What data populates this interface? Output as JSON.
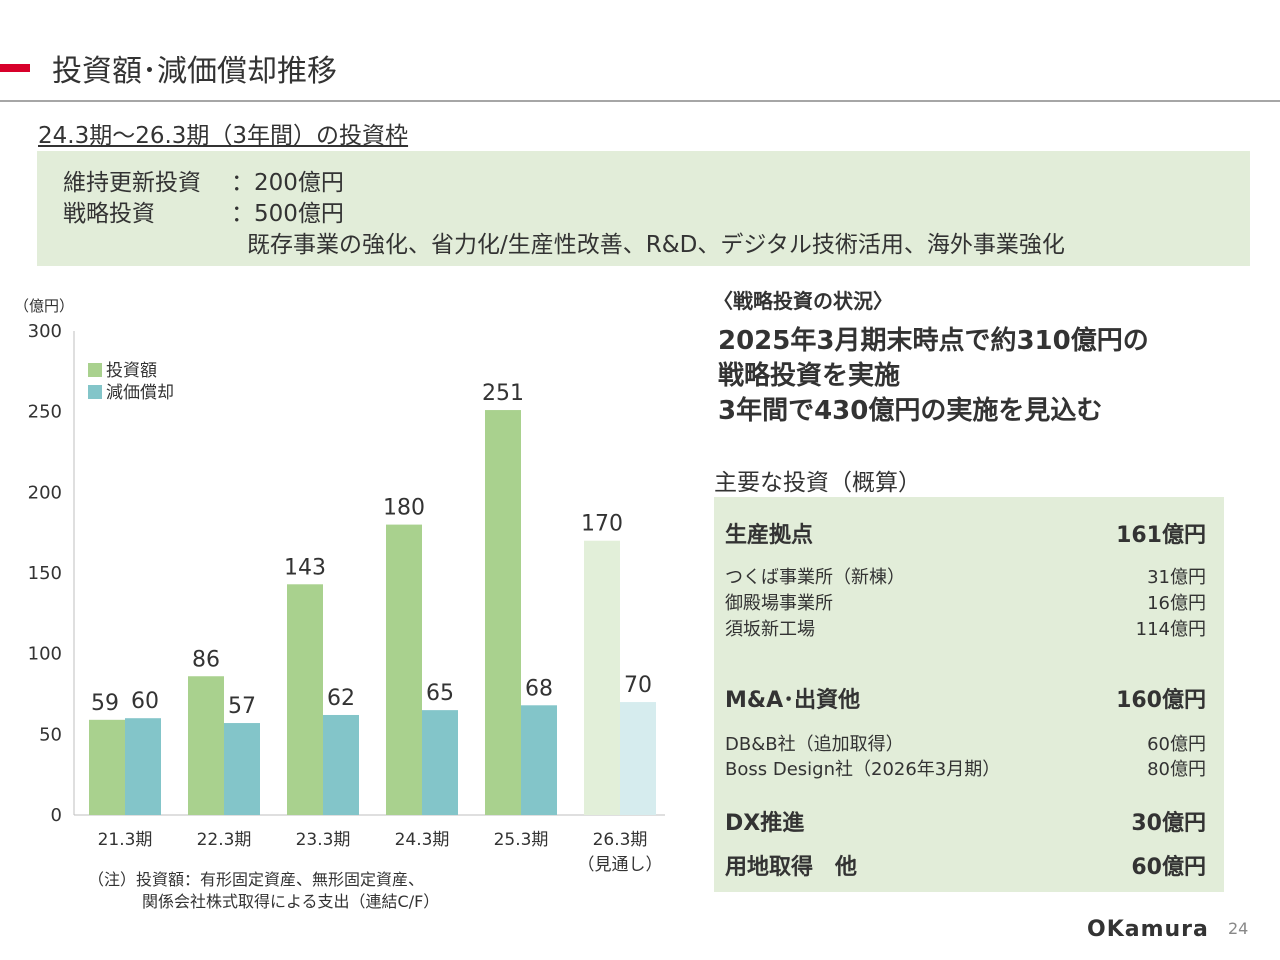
{
  "header": {
    "title": "投資額･減価償却推移"
  },
  "frame": {
    "subtitle": "24.3期～26.3期（3年間）の投資枠",
    "maintenance_label": "維持更新投資",
    "maintenance_value": "：200億円",
    "strategic_label": "戦略投資",
    "strategic_value": "：500億円",
    "strategic_detail": "既存事業の強化、省力化/生産性改善、R&D、デジタル技術活用、海外事業強化"
  },
  "chart_data": {
    "type": "bar",
    "title": "",
    "unit_label": "（億円）",
    "categories": [
      "21.3期",
      "22.3期",
      "23.3期",
      "24.3期",
      "25.3期",
      "26.3期"
    ],
    "category_notes": [
      "",
      "",
      "",
      "",
      "",
      "（見通し）"
    ],
    "series": [
      {
        "name": "投資額",
        "values": [
          59,
          86,
          143,
          180,
          251,
          170
        ],
        "color": "#a9d18e",
        "forecast_color": "#e2efd9"
      },
      {
        "name": "減価償却",
        "values": [
          60,
          57,
          62,
          65,
          68,
          70
        ],
        "color": "#83c5c9",
        "forecast_color": "#d6ecee"
      }
    ],
    "ylim": [
      0,
      300
    ],
    "yticks": [
      0,
      50,
      100,
      150,
      200,
      250,
      300
    ],
    "legend_position": "top-left",
    "forecast_index": 5,
    "xlabel": "",
    "ylabel": "",
    "note_line1": "（注）投資額：有形固定資産、無形固定資産、",
    "note_line2": "関係会社株式取得による支出（連結C/F）"
  },
  "status": {
    "heading": "〈戦略投資の状況〉",
    "line1": "2025年3月期末時点で約310億円の",
    "line2": "戦略投資を実施",
    "line3": "3年間で430億円の実施を見込む"
  },
  "investments": {
    "heading": "主要な投資（概算）",
    "production": {
      "label": "生産拠点",
      "value": "161億円",
      "items": [
        {
          "label": "つくば事業所（新棟）",
          "value": "31億円"
        },
        {
          "label": "御殿場事業所",
          "value": "16億円"
        },
        {
          "label": "須坂新工場",
          "value": "114億円"
        }
      ]
    },
    "ma": {
      "label": "M&A･出資他",
      "value": "160億円",
      "items": [
        {
          "label": "DB&B社（追加取得）",
          "value": "60億円"
        },
        {
          "label": "Boss Design社（2026年3月期）",
          "value": "80億円"
        }
      ]
    },
    "dx": {
      "label": "DX推進",
      "value": "30億円"
    },
    "land": {
      "label": "用地取得　他",
      "value": "60億円"
    }
  },
  "footer": {
    "logo": "OKamura",
    "page": "24"
  }
}
